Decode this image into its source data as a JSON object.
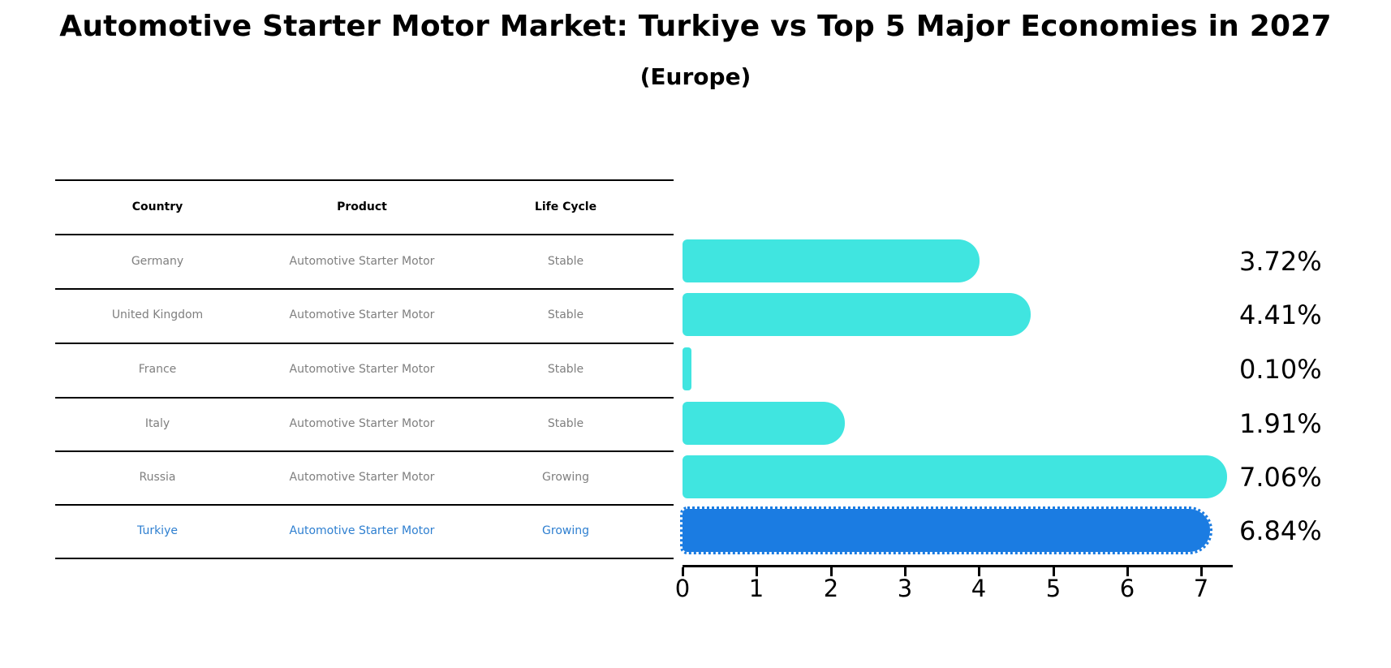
{
  "title": "Automotive Starter Motor Market: Turkiye vs Top 5 Major Economies in 2027",
  "subtitle": "(Europe)",
  "table": {
    "headers": [
      "Country",
      "Product",
      "Life Cycle"
    ],
    "rows": [
      {
        "country": "Germany",
        "product": "Automotive Starter Motor",
        "life_cycle": "Stable",
        "highlight": false
      },
      {
        "country": "United Kingdom",
        "product": "Automotive Starter Motor",
        "life_cycle": "Stable",
        "highlight": false
      },
      {
        "country": "France",
        "product": "Automotive Starter Motor",
        "life_cycle": "Stable",
        "highlight": false
      },
      {
        "country": "Italy",
        "product": "Automotive Starter Motor",
        "life_cycle": "Stable",
        "highlight": false
      },
      {
        "country": "Russia",
        "product": "Automotive Starter Motor",
        "life_cycle": "Growing",
        "highlight": false
      },
      {
        "country": "Turkiye",
        "product": "Automotive Starter Motor",
        "life_cycle": "Growing",
        "highlight": true
      }
    ]
  },
  "chart_data": {
    "type": "bar",
    "orientation": "horizontal",
    "title": "Automotive Starter Motor Market: Turkiye vs Top 5 Major Economies in 2027 (Europe)",
    "categories": [
      "Germany",
      "United Kingdom",
      "France",
      "Italy",
      "Russia",
      "Turkiye"
    ],
    "values": [
      3.72,
      4.41,
      0.1,
      1.91,
      7.06,
      6.84
    ],
    "value_labels": [
      "3.72%",
      "4.41%",
      "0.10%",
      "1.91%",
      "7.06%",
      "6.84%"
    ],
    "x_ticks": [
      0,
      1,
      2,
      3,
      4,
      5,
      6,
      7
    ],
    "xlim": [
      0,
      7.43
    ],
    "grid": false,
    "legend": false,
    "highlight_index": 5,
    "bar_color": "#40E5E0",
    "highlight_bar_color": "#1B7CE2",
    "highlight_text_color": "#2E7FD0",
    "text_color": "#7f7f7f"
  }
}
